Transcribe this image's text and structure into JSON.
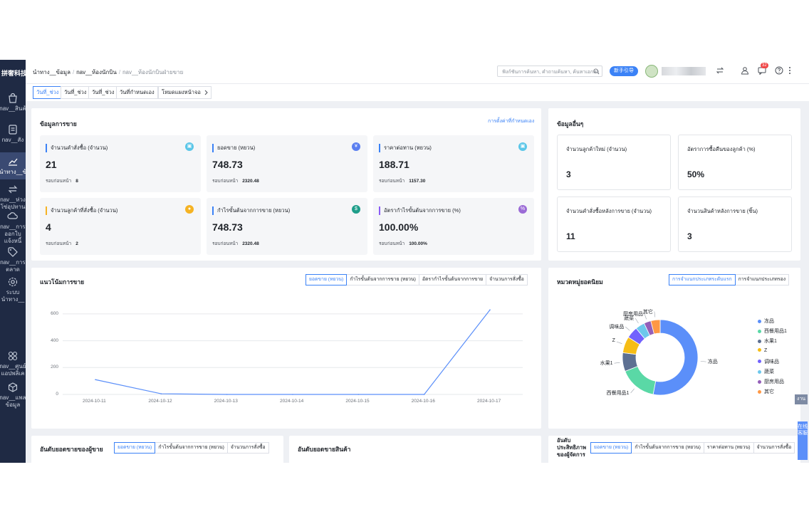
{
  "sidebar": {
    "logo": "拼奢科技",
    "items": [
      {
        "label": "nav__สินค้",
        "icon": "shopping-bag-icon"
      },
      {
        "label": "nav__สั่ง",
        "icon": "document-icon"
      },
      {
        "label": "นำทาง__ข้",
        "icon": "chart-line-icon"
      },
      {
        "label": "nav__ห่วง\nโซ่อุปทาน",
        "icon": "arrows-icon"
      },
      {
        "label": "nav__การ\nออกใบ\nแจ้งหนี้",
        "icon": "cloud-icon"
      },
      {
        "label": "nav__การ\nตลาด",
        "icon": "tag-icon"
      },
      {
        "label": "ระบบ\nนำทาง__",
        "icon": "gear-icon"
      },
      {
        "label": "nav__ศูนย์\nแอปพลิเค",
        "icon": "apps-icon"
      },
      {
        "label": "nav__แพล\nข้อมูล",
        "icon": "cube-icon"
      }
    ]
  },
  "topbar": {
    "breadcrumb": [
      "นำทาง__ข้อมูล",
      "nav__ห้องนักบิน",
      "nav__ห้องนักบินฝ่ายขาย"
    ],
    "search_placeholder": "ฟังก์ชันการค้นหา, คำถามค้นหา, ค้นหาเอกสา",
    "new_button": "新手引导",
    "notification_count": "32"
  },
  "date_tabs": [
    "วันที่_ช่วง",
    "วันที่_ช่วง",
    "วันที่_ช่วง",
    "วันที่กำหนดเอง",
    "โหมดแผงหน้าจอ"
  ],
  "sales_info": {
    "title": "ข้อมูลการขาย",
    "settings_link": "การตั้งค่าที่กำหนดเอง",
    "metrics": [
      {
        "label": "จำนวนคำสั่งซื้อ (จำนวน)",
        "value": "21",
        "prev_label": "รอบก่อนหน้า",
        "prev": "8",
        "color": "#3b82f6",
        "icon_bg": "#5bc6e8",
        "icon": "▣"
      },
      {
        "label": "ยอดขาย (หยวน)",
        "value": "748.73",
        "prev_label": "รอบก่อนหน้า",
        "prev": "2320.48",
        "color": "#3b82f6",
        "icon_bg": "#5b7ff0",
        "icon": "¥"
      },
      {
        "label": "ราคาต่อทาน (หยวน)",
        "value": "188.71",
        "prev_label": "รอบก่อนหน้า",
        "prev": "1157.30",
        "color": "#3b82f6",
        "icon_bg": "#5bc6e8",
        "icon": "▣"
      },
      {
        "label": "จำนวนลูกค้าที่สั่งซื้อ (จำนวน)",
        "value": "4",
        "prev_label": "รอบก่อนหน้า",
        "prev": "2",
        "color": "#f5b324",
        "icon_bg": "#f5b324",
        "icon": "●"
      },
      {
        "label": "กำไรขั้นต้นจากการขาย (หยวน)",
        "value": "748.73",
        "prev_label": "รอบก่อนหน้า",
        "prev": "2320.48",
        "color": "#3b82f6",
        "icon_bg": "#1f9e8a",
        "icon": "$"
      },
      {
        "label": "อัตรากำไรขั้นต้นจากการขาย (%)",
        "value": "100.00%",
        "prev_label": "รอบก่อนหน้า",
        "prev": "100.00%",
        "color": "#8b5cf6",
        "icon_bg": "#9b6bd6",
        "icon": "%"
      }
    ]
  },
  "other_info": {
    "title": "ข้อมูลอื่นๆ",
    "metrics": [
      {
        "label": "จำนวนลูกค้าใหม่ (จำนวน)",
        "value": "3"
      },
      {
        "label": "อัตราการซื้อคืนของลูกค้า (%)",
        "value": "50%"
      },
      {
        "label": "จำนวนคำสั่งซื้อหลังการขาย (จำนวน)",
        "value": "11"
      },
      {
        "label": "จำนวนสินค้าหลังการขาย (ชิ้น)",
        "value": "3"
      }
    ]
  },
  "trend": {
    "title": "แนวโน้มการขาย",
    "tabs": [
      "ยอดขาย (หยวน)",
      "กำไรขั้นต้นจากการขาย (หยวน)",
      "อัตรากำไรขั้นต้นจากการขาย",
      "จำนวนการสั่งซื้อ"
    ]
  },
  "chart_data": [
    {
      "type": "line",
      "x": [
        "2024-10-11",
        "2024-10-12",
        "2024-10-13",
        "2024-10-14",
        "2024-10-15",
        "2024-10-16",
        "2024-10-17"
      ],
      "series": [
        {
          "values": [
            110,
            5,
            0,
            0,
            0,
            0,
            630
          ]
        }
      ],
      "yticks": [
        "0",
        "200",
        "400",
        "600"
      ],
      "ylim": [
        0,
        700
      ],
      "grid": true,
      "color": "#5b8ff9"
    },
    {
      "type": "pie",
      "categories": [
        "冻品",
        "西餐用品1",
        "水果1",
        "Z",
        "调味品",
        "蔬菜",
        "厨房用品",
        "其它"
      ],
      "values": [
        53,
        16,
        8,
        7,
        5,
        4,
        3,
        4
      ],
      "colors": [
        "#5b8ff9",
        "#5ad8a6",
        "#5d7092",
        "#f6bd16",
        "#7262fd",
        "#6dc8ec",
        "#945fb9",
        "#ff9845"
      ],
      "legend": "right"
    }
  ],
  "category": {
    "title": "หมวดหมู่ยอดนิยม",
    "tabs": [
      "การจำแนกประเภทระดับแรก",
      "การจำแนกประเภทรอง"
    ]
  },
  "seller_rank": {
    "title": "อันดับยอดขายของผู้ขาย",
    "tabs": [
      "ยอดขาย (หยวน)",
      "กำไรขั้นต้นจากการขาย (หยวน)",
      "จำนวนการสั่งซื้อ"
    ]
  },
  "product_rank": {
    "title": "อันดับยอดขายสินค้า"
  },
  "perf_rank": {
    "title": "อันดับ\nประสิทธิภาพ\nของผู้จัดการ",
    "tabs": [
      "ยอดขาย (หยวน)",
      "กำไรขั้นต้นจากการขาย (หยวน)",
      "ราคาต่อทาน (หยวน)",
      "จำนวนการสั่งซื้อ"
    ]
  },
  "float": {
    "side_label": "งาน",
    "service": "在线客服"
  }
}
